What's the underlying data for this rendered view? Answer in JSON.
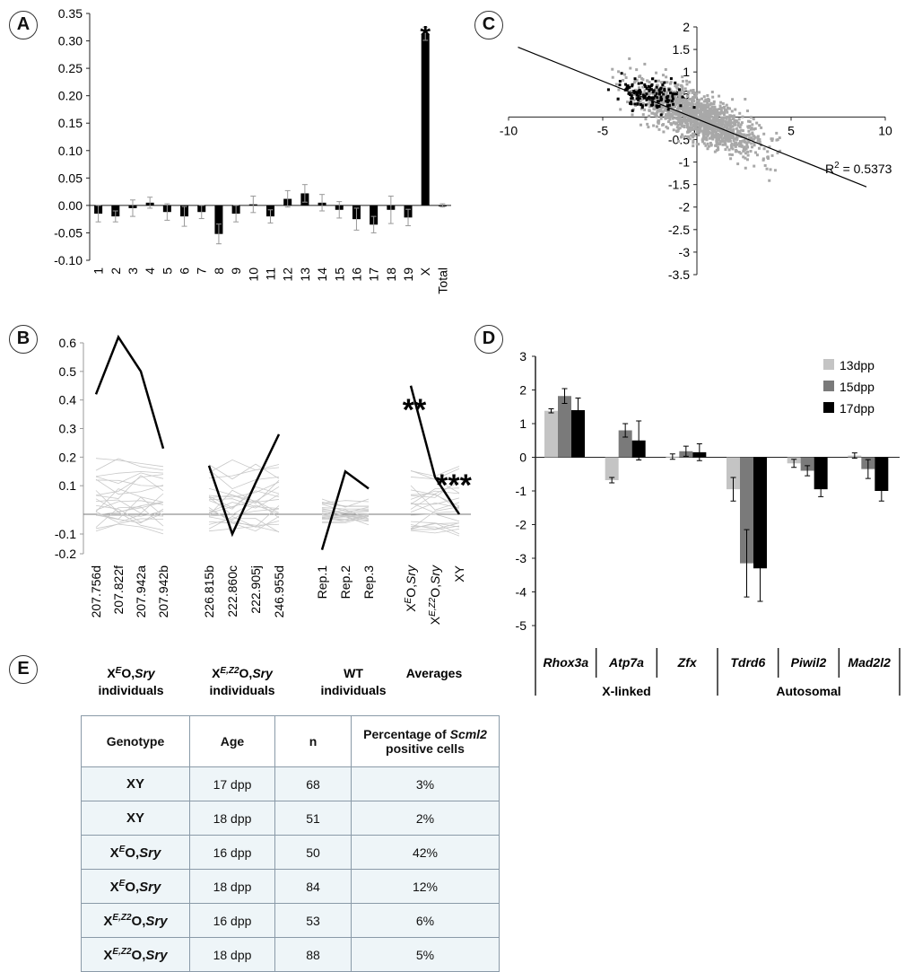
{
  "panels": {
    "a": "A",
    "b": "B",
    "c": "C",
    "d": "D",
    "e": "E"
  },
  "chart_data": [
    {
      "panel": "A",
      "type": "bar",
      "categories": [
        "1",
        "2",
        "3",
        "4",
        "5",
        "6",
        "7",
        "8",
        "9",
        "10",
        "11",
        "12",
        "13",
        "14",
        "15",
        "16",
        "17",
        "18",
        "19",
        "X",
        "Total"
      ],
      "values": [
        -0.015,
        -0.02,
        -0.005,
        0.005,
        -0.012,
        -0.02,
        -0.012,
        -0.052,
        -0.015,
        0.002,
        -0.02,
        0.012,
        0.022,
        0.005,
        -0.008,
        -0.025,
        -0.035,
        -0.008,
        -0.022,
        0.313,
        0.0
      ],
      "errors": [
        0.015,
        0.01,
        0.015,
        0.01,
        0.015,
        0.018,
        0.012,
        0.018,
        0.015,
        0.015,
        0.012,
        0.015,
        0.016,
        0.015,
        0.015,
        0.02,
        0.015,
        0.025,
        0.015,
        0.012,
        0.003
      ],
      "ylim": [
        -0.1,
        0.35
      ],
      "yticks": [
        "-0.10",
        "-0.05",
        "0.00",
        "0.05",
        "0.10",
        "0.15",
        "0.20",
        "0.25",
        "0.30",
        "0.35"
      ],
      "annotation": "*"
    },
    {
      "panel": "B",
      "type": "line",
      "ylim": [
        -0.2,
        0.6
      ],
      "yticks": [
        "-0.2",
        "-0.1",
        "0.1",
        "0.2",
        "0.3",
        "0.4",
        "0.5",
        "0.6"
      ],
      "groups": [
        {
          "label_parts": [
            "X",
            "E",
            "O,",
            "Sry"
          ],
          "label2": "individuals",
          "ticks": [
            "207.756d",
            "207.822f",
            "207.942a",
            "207.942b"
          ],
          "bold_line": [
            0.42,
            0.62,
            0.5,
            0.23
          ]
        },
        {
          "label_parts": [
            "X",
            "E,Z2",
            "O,",
            "Sry"
          ],
          "label2": "individuals",
          "ticks": [
            "226.815b",
            "222.860c",
            "222.905j",
            "246.955d"
          ],
          "bold_line": [
            0.17,
            -0.1,
            0.11,
            0.28
          ]
        },
        {
          "label_parts": [
            "WT",
            "",
            "",
            ""
          ],
          "label2": "individuals",
          "ticks": [
            "Rep.1",
            "Rep.2",
            "Rep.3"
          ],
          "bold_line": [
            -0.18,
            0.15,
            0.09
          ]
        },
        {
          "label_parts": [
            "Averages",
            "",
            "",
            ""
          ],
          "label2": "",
          "ticks": [
            "XEO,Sry",
            "XE,Z2O,Sry",
            "XY"
          ],
          "tick_parts": [
            [
              "X",
              "E",
              "O,",
              "Sry"
            ],
            [
              "X",
              "E,Z2",
              "O,",
              "Sry"
            ],
            [
              "XY",
              "",
              "",
              ""
            ]
          ],
          "bold_line": [
            0.45,
            0.13,
            0.0
          ]
        }
      ],
      "annotations": [
        "**",
        "***"
      ]
    },
    {
      "panel": "C",
      "type": "scatter",
      "xlim": [
        -10,
        10
      ],
      "ylim": [
        -3.5,
        2
      ],
      "xticks": [
        "-10",
        "-5",
        "0",
        "5",
        "10"
      ],
      "yticks": [
        "-3.5",
        "-3",
        "-2.5",
        "-2",
        "-1.5",
        "-1",
        "-0.5",
        "0.5",
        "1",
        "1.5",
        "2"
      ],
      "trendline": {
        "x": [
          -9.5,
          9
        ],
        "y": [
          1.55,
          -1.55
        ]
      },
      "r2_base": "R",
      "r2_sup": "2",
      "r2_rest": " = 0.5373"
    },
    {
      "panel": "D",
      "type": "bar",
      "categories": [
        "Rhox3a",
        "Atp7a",
        "Zfx",
        "Tdrd6",
        "Piwil2",
        "Mad2l2"
      ],
      "group_labels": [
        "X-linked",
        "Autosomal"
      ],
      "series": [
        {
          "name": "13dpp",
          "color": "#c4c4c4",
          "values": [
            1.38,
            -0.68,
            0.02,
            -0.95,
            -0.18,
            0.05
          ],
          "errors": [
            0.06,
            0.08,
            0.08,
            0.35,
            0.12,
            0.08
          ]
        },
        {
          "name": "15dpp",
          "color": "#7a7a7a",
          "values": [
            1.82,
            0.8,
            0.18,
            -3.15,
            -0.4,
            -0.35
          ],
          "errors": [
            0.22,
            0.2,
            0.15,
            1.0,
            0.15,
            0.28
          ]
        },
        {
          "name": "17dpp",
          "color": "#000000",
          "values": [
            1.4,
            0.5,
            0.15,
            -3.3,
            -0.95,
            -1.0
          ],
          "errors": [
            0.36,
            0.58,
            0.25,
            0.98,
            0.22,
            0.3
          ]
        }
      ],
      "ylim": [
        -5,
        3
      ],
      "yticks": [
        "-5",
        "-4",
        "-3",
        "-2",
        "-1",
        "0",
        "1",
        "2",
        "3"
      ]
    },
    {
      "panel": "E",
      "type": "table",
      "header": {
        "c1": "Genotype",
        "c2": "Age",
        "c3": "n",
        "c4a": "Percentage of ",
        "c4b": "Scml2",
        "c4c": "positive cells"
      },
      "rows": [
        {
          "g": "XY",
          "gsup": "",
          "gsry": "",
          "age": "17 dpp",
          "n": "68",
          "pct": "3%"
        },
        {
          "g": "XY",
          "gsup": "",
          "gsry": "",
          "age": "18 dpp",
          "n": "51",
          "pct": "2%"
        },
        {
          "g": "X",
          "gsup": "E",
          "gmid": "O,",
          "gsry": "Sry",
          "age": "16 dpp",
          "n": "50",
          "pct": "42%"
        },
        {
          "g": "X",
          "gsup": "E",
          "gmid": "O,",
          "gsry": "Sry",
          "age": "18 dpp",
          "n": "84",
          "pct": "12%"
        },
        {
          "g": "X",
          "gsup": "E,Z2",
          "gmid": "O,",
          "gsry": "Sry",
          "age": "16 dpp",
          "n": "53",
          "pct": "6%"
        },
        {
          "g": "X",
          "gsup": "E,Z2",
          "gmid": "O,",
          "gsry": "Sry",
          "age": "18 dpp",
          "n": "88",
          "pct": "5%"
        }
      ]
    }
  ]
}
